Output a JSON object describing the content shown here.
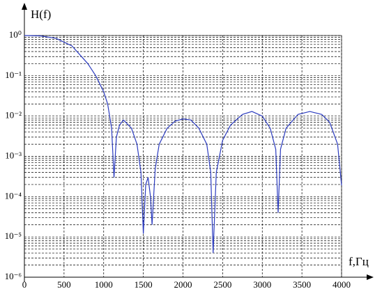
{
  "chart_data": {
    "type": "line",
    "x_label": "f,Гц",
    "y_label": "H(f)",
    "log_y": true,
    "grid": true,
    "xlim": [
      0,
      4000
    ],
    "xticks": [
      0,
      500,
      1000,
      1500,
      2000,
      2500,
      3000,
      3500,
      4000
    ],
    "ylim": [
      1e-06,
      1
    ],
    "yticks": [
      {
        "value": 1e-06,
        "label": "10⁻⁶"
      },
      {
        "value": 1e-05,
        "label": "10⁻⁵"
      },
      {
        "value": 0.0001,
        "label": "10⁻⁴"
      },
      {
        "value": 0.001,
        "label": "10⁻³"
      },
      {
        "value": 0.01,
        "label": "10⁻²"
      },
      {
        "value": 0.1,
        "label": "10⁻¹"
      },
      {
        "value": 1,
        "label": "10⁰"
      }
    ],
    "series": [
      {
        "name": "H(f)",
        "color": "#2b3bbf",
        "x": [
          0,
          200,
          400,
          600,
          800,
          900,
          1000,
          1050,
          1100,
          1130,
          1160,
          1200,
          1250,
          1350,
          1420,
          1470,
          1500,
          1530,
          1560,
          1590,
          1610,
          1650,
          1700,
          1800,
          1900,
          2000,
          2100,
          2200,
          2300,
          2350,
          2380,
          2420,
          2500,
          2600,
          2750,
          2870,
          3000,
          3100,
          3170,
          3200,
          3230,
          3300,
          3450,
          3600,
          3750,
          3850,
          3950,
          4000
        ],
        "values": [
          1,
          0.98,
          0.85,
          0.55,
          0.2,
          0.1,
          0.04,
          0.02,
          0.005,
          0.0003,
          0.003,
          0.006,
          0.008,
          0.005,
          0.002,
          0.0004,
          1.2e-05,
          0.0002,
          0.0003,
          0.0001,
          2e-05,
          0.0005,
          0.002,
          0.005,
          0.0075,
          0.0085,
          0.008,
          0.005,
          0.002,
          0.0004,
          4e-06,
          0.0004,
          0.0025,
          0.006,
          0.011,
          0.013,
          0.01,
          0.005,
          0.0015,
          4e-05,
          0.0015,
          0.005,
          0.011,
          0.013,
          0.011,
          0.007,
          0.002,
          0.00019
        ]
      }
    ]
  }
}
